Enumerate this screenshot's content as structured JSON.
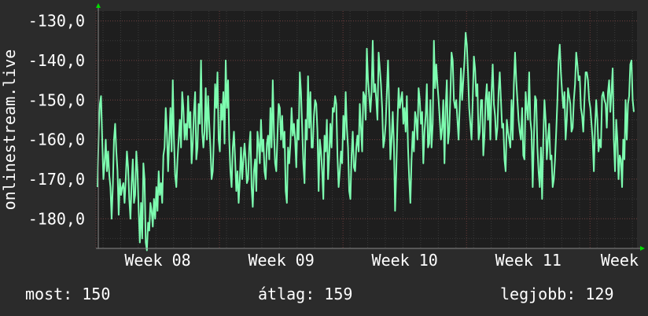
{
  "chart_data": {
    "type": "line",
    "ylabel": "onlinestream.live",
    "ylim": [
      -187.5,
      -127.5
    ],
    "y_ticks": [
      -130,
      -140,
      -150,
      -160,
      -170,
      -180
    ],
    "y_tick_labels": [
      "-130,0",
      "-140,0",
      "-150,0",
      "-160,0",
      "-170,0",
      "-180,0"
    ],
    "x_ticks": [
      {
        "x": 8.3,
        "label": "Week 08"
      },
      {
        "x": 9.3,
        "label": "Week 09"
      },
      {
        "x": 10.3,
        "label": "Week 10"
      },
      {
        "x": 11.3,
        "label": "Week 11"
      },
      {
        "x": 12.3,
        "label": "Week"
      }
    ],
    "xlim": [
      7.8,
      12.18
    ],
    "grid": true,
    "colors": {
      "background": "#2b2b2b",
      "plot_background": "#1e1e1e",
      "line": "#7dfcb0",
      "grid_minor": "#3a3a3a",
      "grid_major": "#6a3b3b",
      "axis_arrow": "#00dd00"
    },
    "series": [
      {
        "values": [
          -172,
          -158,
          -151,
          -149,
          -160,
          -170,
          -166,
          -160,
          -168,
          -163,
          -169,
          -172,
          -180,
          -172,
          -160,
          -156,
          -163,
          -168,
          -179,
          -170,
          -174,
          -172,
          -171,
          -176,
          -170,
          -163,
          -167,
          -175,
          -180,
          -171,
          -165,
          -176,
          -174,
          -163,
          -168,
          -178,
          -186,
          -176,
          -185,
          -166,
          -170,
          -186,
          -188,
          -181,
          -183,
          -176,
          -178,
          -182,
          -175,
          -180,
          -172,
          -178,
          -168,
          -174,
          -171,
          -176,
          -164,
          -162,
          -152,
          -158,
          -168,
          -160,
          -152,
          -163,
          -145,
          -160,
          -169,
          -172,
          -165,
          -160,
          -155,
          -162,
          -148,
          -152,
          -160,
          -156,
          -160,
          -149,
          -157,
          -153,
          -166,
          -161,
          -153,
          -148,
          -165,
          -162,
          -151,
          -156,
          -140,
          -158,
          -162,
          -158,
          -147,
          -160,
          -149,
          -156,
          -162,
          -170,
          -168,
          -159,
          -146,
          -152,
          -143,
          -160,
          -163,
          -151,
          -155,
          -148,
          -161,
          -140,
          -152,
          -145,
          -160,
          -168,
          -172,
          -162,
          -158,
          -165,
          -173,
          -168,
          -176,
          -170,
          -162,
          -170,
          -165,
          -161,
          -165,
          -171,
          -170,
          -162,
          -158,
          -172,
          -177,
          -168,
          -165,
          -173,
          -158,
          -161,
          -166,
          -155,
          -163,
          -160,
          -168,
          -170,
          -161,
          -159,
          -165,
          -152,
          -162,
          -145,
          -158,
          -166,
          -168,
          -159,
          -151,
          -152,
          -160,
          -154,
          -162,
          -158,
          -173,
          -176,
          -162,
          -166,
          -161,
          -152,
          -159,
          -156,
          -160,
          -167,
          -155,
          -160,
          -143,
          -148,
          -157,
          -166,
          -171,
          -155,
          -160,
          -144,
          -157,
          -148,
          -162,
          -162,
          -154,
          -150,
          -151,
          -158,
          -173,
          -160,
          -163,
          -168,
          -175,
          -159,
          -163,
          -155,
          -170,
          -164,
          -156,
          -162,
          -152,
          -153,
          -149,
          -151,
          -164,
          -172,
          -168,
          -163,
          -166,
          -154,
          -160,
          -148,
          -157,
          -162,
          -173,
          -175,
          -164,
          -158,
          -167,
          -168,
          -162,
          -159,
          -163,
          -151,
          -157,
          -163,
          -148,
          -149,
          -155,
          -137,
          -145,
          -149,
          -153,
          -148,
          -135,
          -148,
          -146,
          -150,
          -155,
          -138,
          -142,
          -146,
          -152,
          -162,
          -160,
          -156,
          -148,
          -140,
          -152,
          -165,
          -160,
          -153,
          -161,
          -178,
          -168,
          -156,
          -147,
          -152,
          -150,
          -148,
          -156,
          -152,
          -158,
          -149,
          -162,
          -170,
          -176,
          -165,
          -158,
          -163,
          -153,
          -155,
          -160,
          -147,
          -150,
          -156,
          -153,
          -166,
          -158,
          -154,
          -146,
          -162,
          -161,
          -150,
          -162,
          -156,
          -135,
          -147,
          -141,
          -146,
          -150,
          -155,
          -160,
          -157,
          -150,
          -166,
          -152,
          -145,
          -161,
          -158,
          -149,
          -138,
          -140,
          -150,
          -152,
          -150,
          -155,
          -160,
          -151,
          -142,
          -150,
          -145,
          -140,
          -133,
          -136,
          -143,
          -152,
          -156,
          -160,
          -150,
          -139,
          -142,
          -149,
          -146,
          -160,
          -158,
          -150,
          -150,
          -164,
          -159,
          -150,
          -146,
          -155,
          -148,
          -160,
          -148,
          -141,
          -151,
          -154,
          -160,
          -157,
          -148,
          -143,
          -150,
          -157,
          -156,
          -165,
          -168,
          -155,
          -158,
          -160,
          -162,
          -150,
          -160,
          -146,
          -138,
          -145,
          -150,
          -155,
          -158,
          -160,
          -152,
          -164,
          -165,
          -148,
          -152,
          -155,
          -143,
          -155,
          -158,
          -172,
          -160,
          -149,
          -150,
          -162,
          -168,
          -172,
          -162,
          -175,
          -160,
          -150,
          -155,
          -165,
          -160,
          -156,
          -165,
          -164,
          -172,
          -170,
          -165,
          -158,
          -150,
          -140,
          -136,
          -143,
          -148,
          -152,
          -148,
          -160,
          -155,
          -147,
          -149,
          -151,
          -158,
          -157,
          -150,
          -146,
          -138,
          -141,
          -145,
          -144,
          -152,
          -154,
          -158,
          -150,
          -143,
          -143,
          -145,
          -150,
          -152,
          -156,
          -160,
          -168,
          -157,
          -150,
          -155,
          -163,
          -160,
          -162,
          -149,
          -148,
          -150,
          -151,
          -157,
          -148,
          -145,
          -153,
          -148,
          -142,
          -160,
          -168,
          -155,
          -160,
          -170,
          -164,
          -165,
          -172,
          -160,
          -165,
          -150,
          -160,
          -151,
          -149,
          -141,
          -140,
          -150,
          -153
        ]
      }
    ]
  },
  "stats": {
    "most": "most: 150",
    "atlag": "átlag: 159",
    "legjobb": "legjobb: 129"
  }
}
